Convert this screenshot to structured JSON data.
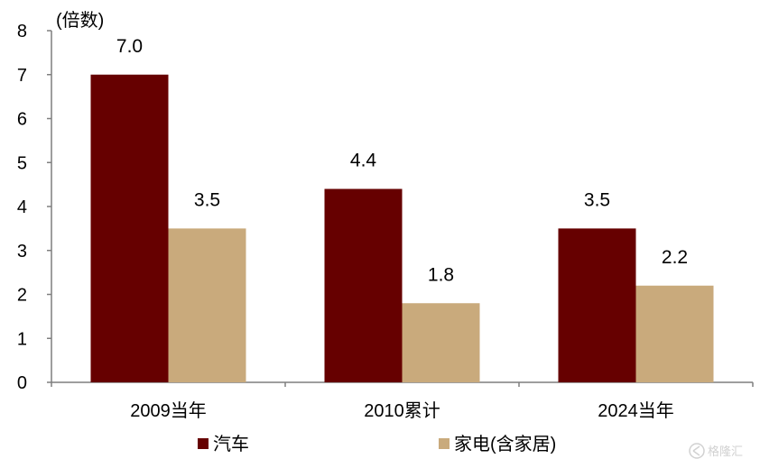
{
  "chart_data": {
    "type": "bar",
    "unit_label": "(倍数)",
    "categories": [
      "2009当年",
      "2010累计",
      "2024当年"
    ],
    "series": [
      {
        "name": "汽车",
        "color": "#660000",
        "values": [
          7.0,
          4.4,
          3.5
        ],
        "labels": [
          "7.0",
          "4.4",
          "3.5"
        ]
      },
      {
        "name": "家电(含家居)",
        "color": "#c9aa7c",
        "values": [
          3.5,
          1.8,
          2.2
        ],
        "labels": [
          "3.5",
          "1.8",
          "2.2"
        ]
      }
    ],
    "ylim": [
      0,
      8
    ],
    "yticks": [
      "0",
      "1",
      "2",
      "3",
      "4",
      "5",
      "6",
      "7",
      "8"
    ],
    "grid": false,
    "legend_position": "bottom"
  },
  "watermark": {
    "icon": "gelonghui-logo-icon",
    "text": "格隆汇"
  }
}
